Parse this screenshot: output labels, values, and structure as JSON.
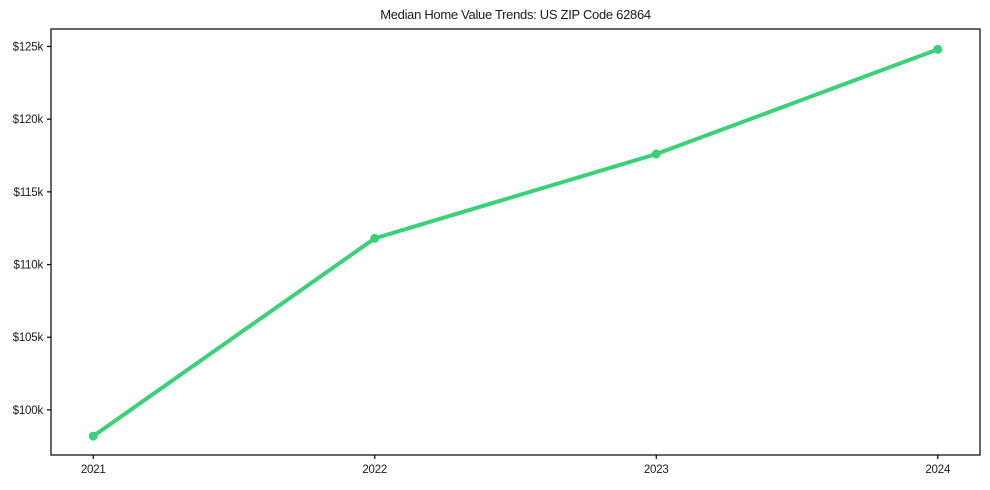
{
  "colors": {
    "line": "#3bd178",
    "axis": "#000000",
    "text": "#1a1a1a",
    "background": "#ffffff"
  },
  "chart_data": {
    "type": "line",
    "title": "Median Home Value Trends: US ZIP Code 62864",
    "x": [
      2021,
      2022,
      2023,
      2024
    ],
    "series": [
      {
        "name": "Median Home Value",
        "color": "#3bd178",
        "values": [
          98200,
          111800,
          117600,
          124800
        ]
      }
    ],
    "xlabel": "",
    "ylabel": "",
    "xtick_labels": [
      "2021",
      "2022",
      "2023",
      "2024"
    ],
    "yticks": [
      100000,
      105000,
      110000,
      115000,
      120000,
      125000
    ],
    "ytick_labels": [
      "$100k",
      "$105k",
      "$110k",
      "$115k",
      "$120k",
      "$125k"
    ],
    "xlim": [
      2020.85,
      2024.15
    ],
    "ylim": [
      96900,
      126200
    ],
    "grid": false,
    "legend": "none",
    "marker": "circle",
    "line_width": 4,
    "marker_radius": 4.5
  }
}
